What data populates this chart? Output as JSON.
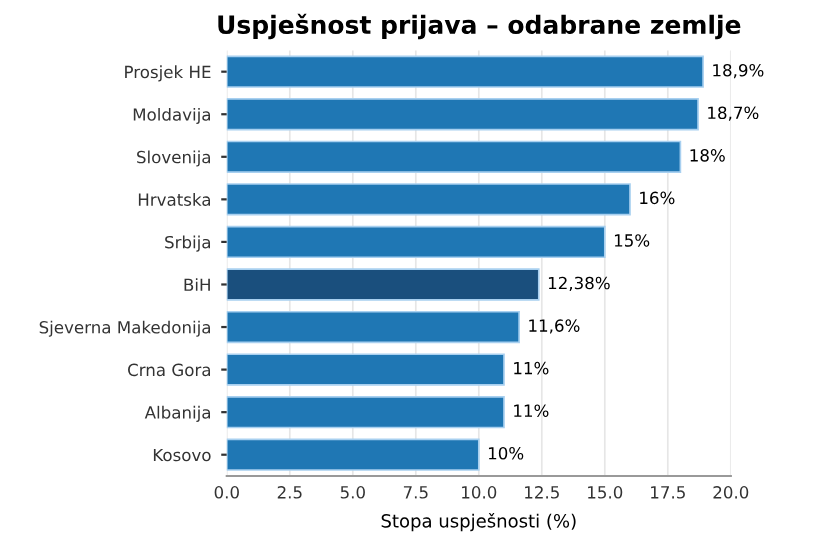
{
  "chart_data": {
    "type": "bar",
    "orientation": "horizontal",
    "title": "Uspješnost prijava – odabrane zemlje",
    "xlabel": "Stopa uspješnosti (%)",
    "categories": [
      "Prosjek HE",
      "Moldavija",
      "Slovenija",
      "Hrvatska",
      "Srbija",
      "BiH",
      "Sjeverna Makedonija",
      "Crna Gora",
      "Albanija",
      "Kosovo"
    ],
    "values": [
      18.9,
      18.7,
      18,
      16,
      15,
      12.38,
      11.6,
      11,
      11,
      10
    ],
    "colors": [
      "#1f77b4",
      "#1f77b4",
      "#1f77b4",
      "#1f77b4",
      "#1f77b4",
      "#1a4f7d",
      "#1f77b4",
      "#1f77b4",
      "#1f77b4",
      "#1f77b4"
    ],
    "value_labels": [
      "18,9%",
      "18,7%",
      "18%",
      "16%",
      "15%",
      "12,38%",
      "11,6%",
      "11%",
      "11%",
      "10%"
    ],
    "xlim": [
      0,
      20
    ],
    "xticks": [
      {
        "value": 0,
        "label": "0.0"
      },
      2.5,
      {
        "value": 5,
        "label": "5.0"
      },
      7.5,
      {
        "value": 10,
        "label": "10.0"
      },
      12.5,
      {
        "value": 15,
        "label": "15.0"
      },
      17.5,
      {
        "value": 20,
        "label": "20.0"
      }
    ],
    "grid": "x"
  }
}
